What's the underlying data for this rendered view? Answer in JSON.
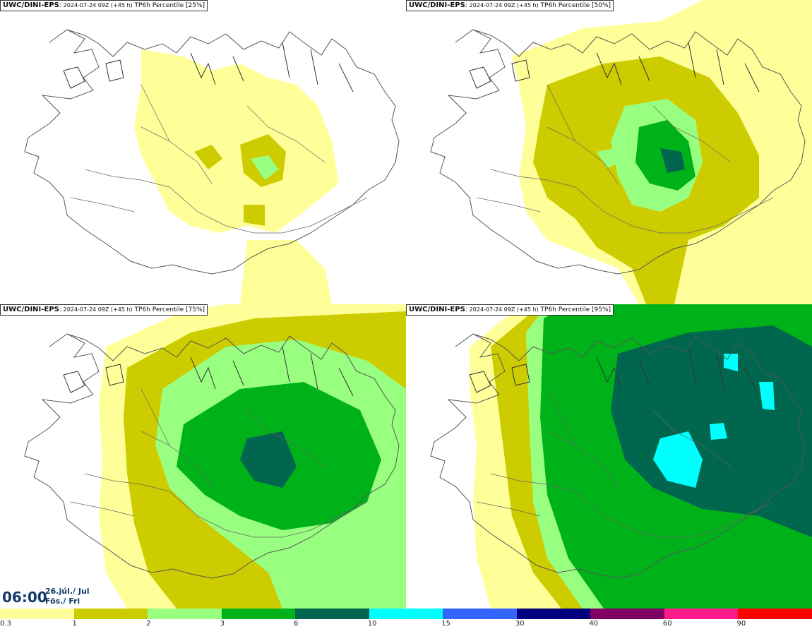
{
  "panels": [
    {
      "source": "UWC/DINI-EPS",
      "meta": "2024-07-24 09Z (+45 h)",
      "field": "TP6h Percentile [25%]"
    },
    {
      "source": "UWC/DINI-EPS",
      "meta": "2024-07-24 09Z (+45 h)",
      "field": "TP6h Percentile [50%]"
    },
    {
      "source": "UWC/DINI-EPS",
      "meta": "2024-07-24 09Z (+45 h)",
      "field": "TP6h Percentile [75%]"
    },
    {
      "source": "UWC/DINI-EPS",
      "meta": "2024-07-24 09Z (+45 h)",
      "field": "TP6h Percentile [95%]"
    }
  ],
  "valid_time": {
    "time": "06:00",
    "date_line1": "26.júl./ Jul",
    "date_line2": "Fös./ Fri"
  },
  "legend": {
    "ticks": [
      "0.3",
      "1",
      "2",
      "3",
      "6",
      "10",
      "15",
      "30",
      "40",
      "60",
      "90"
    ],
    "colors": [
      "#ffff99",
      "#cccc00",
      "#99ff80",
      "#00b21a",
      "#00664d",
      "#00ffff",
      "#3366ff",
      "#00007f",
      "#800066",
      "#ff1a8c",
      "#ff0000"
    ]
  }
}
